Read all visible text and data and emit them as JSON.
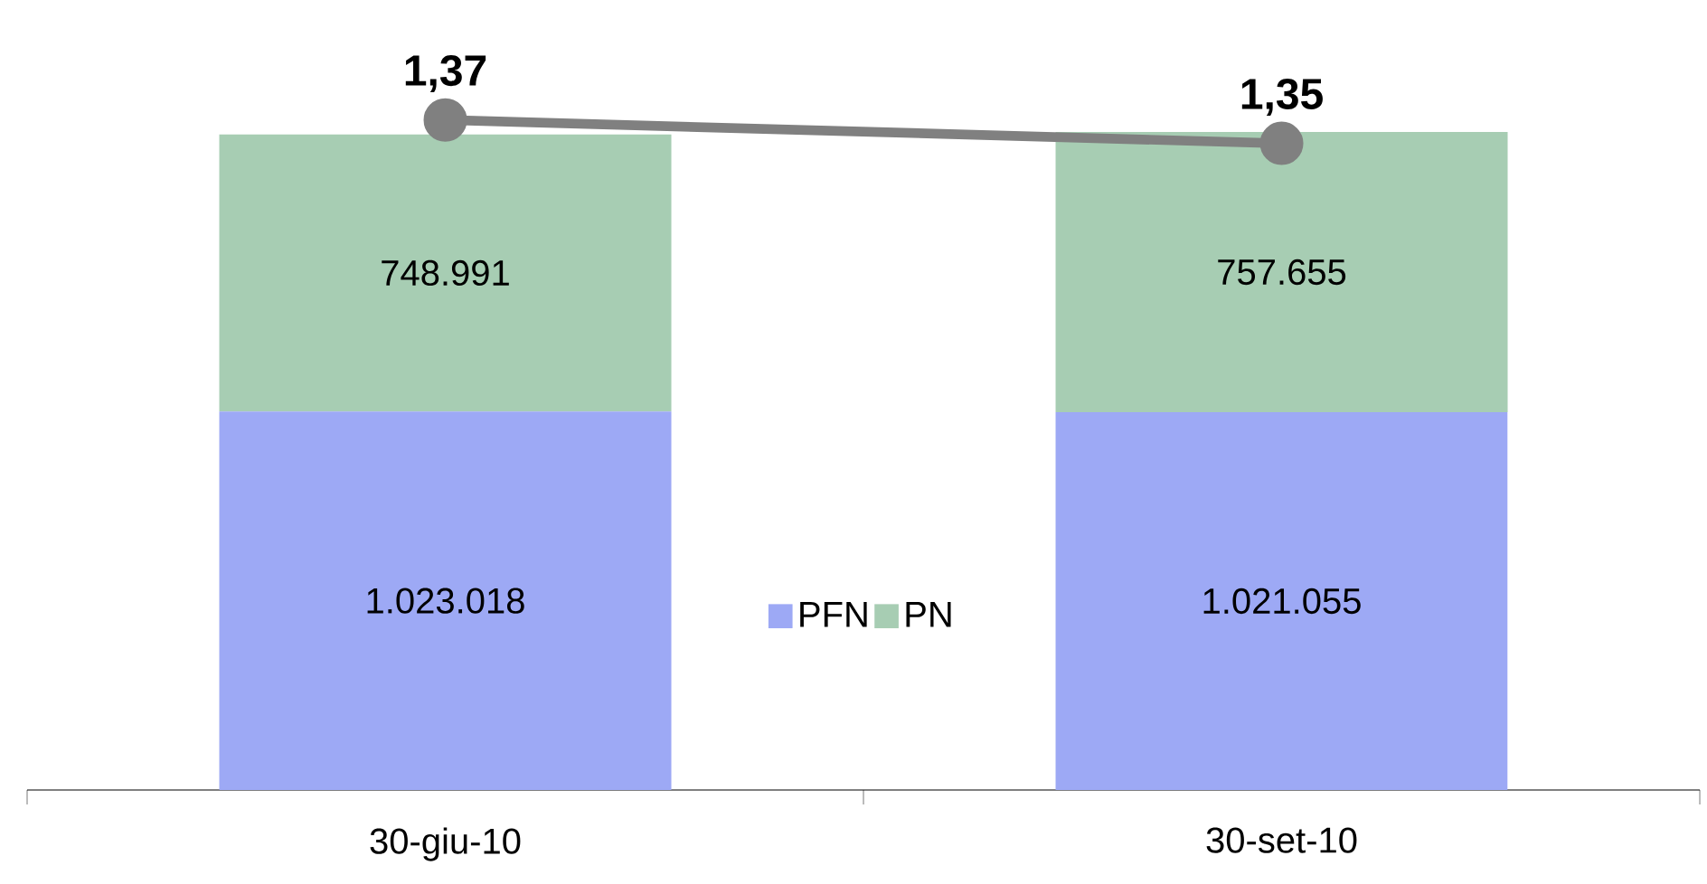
{
  "chart_data": {
    "type": "bar",
    "stacked": true,
    "categories": [
      "30-giu-10",
      "30-set-10"
    ],
    "series": [
      {
        "name": "PFN",
        "color": "#9DA9F5",
        "values": [
          1023018,
          1021055
        ],
        "value_labels": [
          "1.023.018",
          "1.021.055"
        ]
      },
      {
        "name": "PN",
        "color": "#A7CDB3",
        "values": [
          748991,
          757655
        ],
        "value_labels": [
          "748.991",
          "757.655"
        ]
      },
      {
        "type": "line",
        "axis": "y2",
        "color": "#808080",
        "marker": "circle",
        "values": [
          1.37,
          1.35
        ],
        "value_labels": [
          "1,37",
          "1,35"
        ]
      }
    ],
    "legend": "bottom",
    "grid": false
  }
}
